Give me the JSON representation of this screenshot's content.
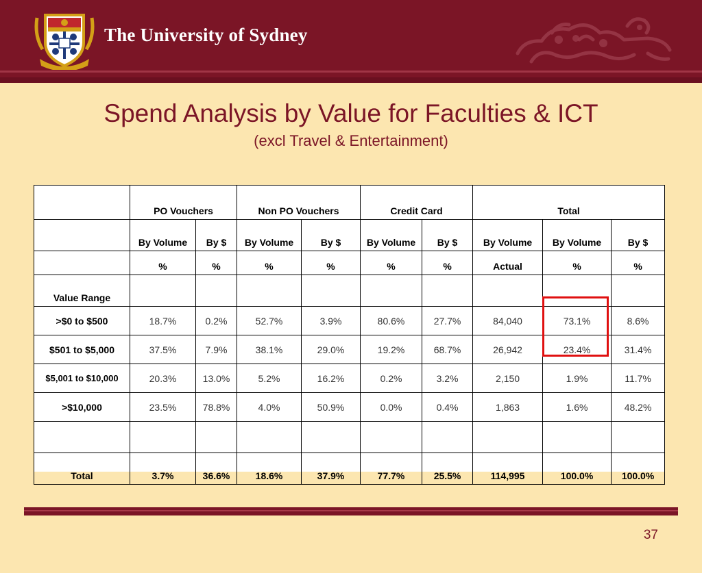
{
  "header": {
    "university_name": "The University of Sydney",
    "brand_color": "#7B1526",
    "crest_icon": "university-crest-icon",
    "lion_icon": "lion-emblem-icon"
  },
  "slide": {
    "title": "Spend Analysis by Value for Faculties & ICT",
    "subtitle": "(excl Travel & Entertainment)",
    "page_number": "37"
  },
  "table": {
    "groups": [
      "PO Vouchers",
      "Non PO Vouchers",
      "Credit Card",
      "Total"
    ],
    "subheaders": [
      "By Volume",
      "By $",
      "By Volume",
      "By $",
      "By Volume",
      "By $",
      "By Volume",
      "By Volume",
      "By $"
    ],
    "units": [
      "%",
      "%",
      "%",
      "%",
      "%",
      "%",
      "Actual",
      "%",
      "%"
    ],
    "value_range_label": "Value Range",
    "rows": [
      {
        "label": ">$0 to $500",
        "cells": [
          "18.7%",
          "0.2%",
          "52.7%",
          "3.9%",
          "80.6%",
          "27.7%",
          "84,040",
          "73.1%",
          "8.6%"
        ]
      },
      {
        "label": "$501 to $5,000",
        "cells": [
          "37.5%",
          "7.9%",
          "38.1%",
          "29.0%",
          "19.2%",
          "68.7%",
          "26,942",
          "23.4%",
          "31.4%"
        ]
      },
      {
        "label": "$5,001 to $10,000",
        "cells": [
          "20.3%",
          "13.0%",
          "5.2%",
          "16.2%",
          "0.2%",
          "3.2%",
          "2,150",
          "1.9%",
          "11.7%"
        ]
      },
      {
        "label": ">$10,000",
        "cells": [
          "23.5%",
          "78.8%",
          "4.0%",
          "50.9%",
          "0.0%",
          "0.4%",
          "1,863",
          "1.6%",
          "48.2%"
        ]
      }
    ],
    "total": {
      "label": "Total",
      "cells": [
        "3.7%",
        "36.6%",
        "18.6%",
        "37.9%",
        "77.7%",
        "25.5%",
        "114,995",
        "100.0%",
        "100.0%"
      ]
    },
    "highlight_color": "#E01010"
  }
}
